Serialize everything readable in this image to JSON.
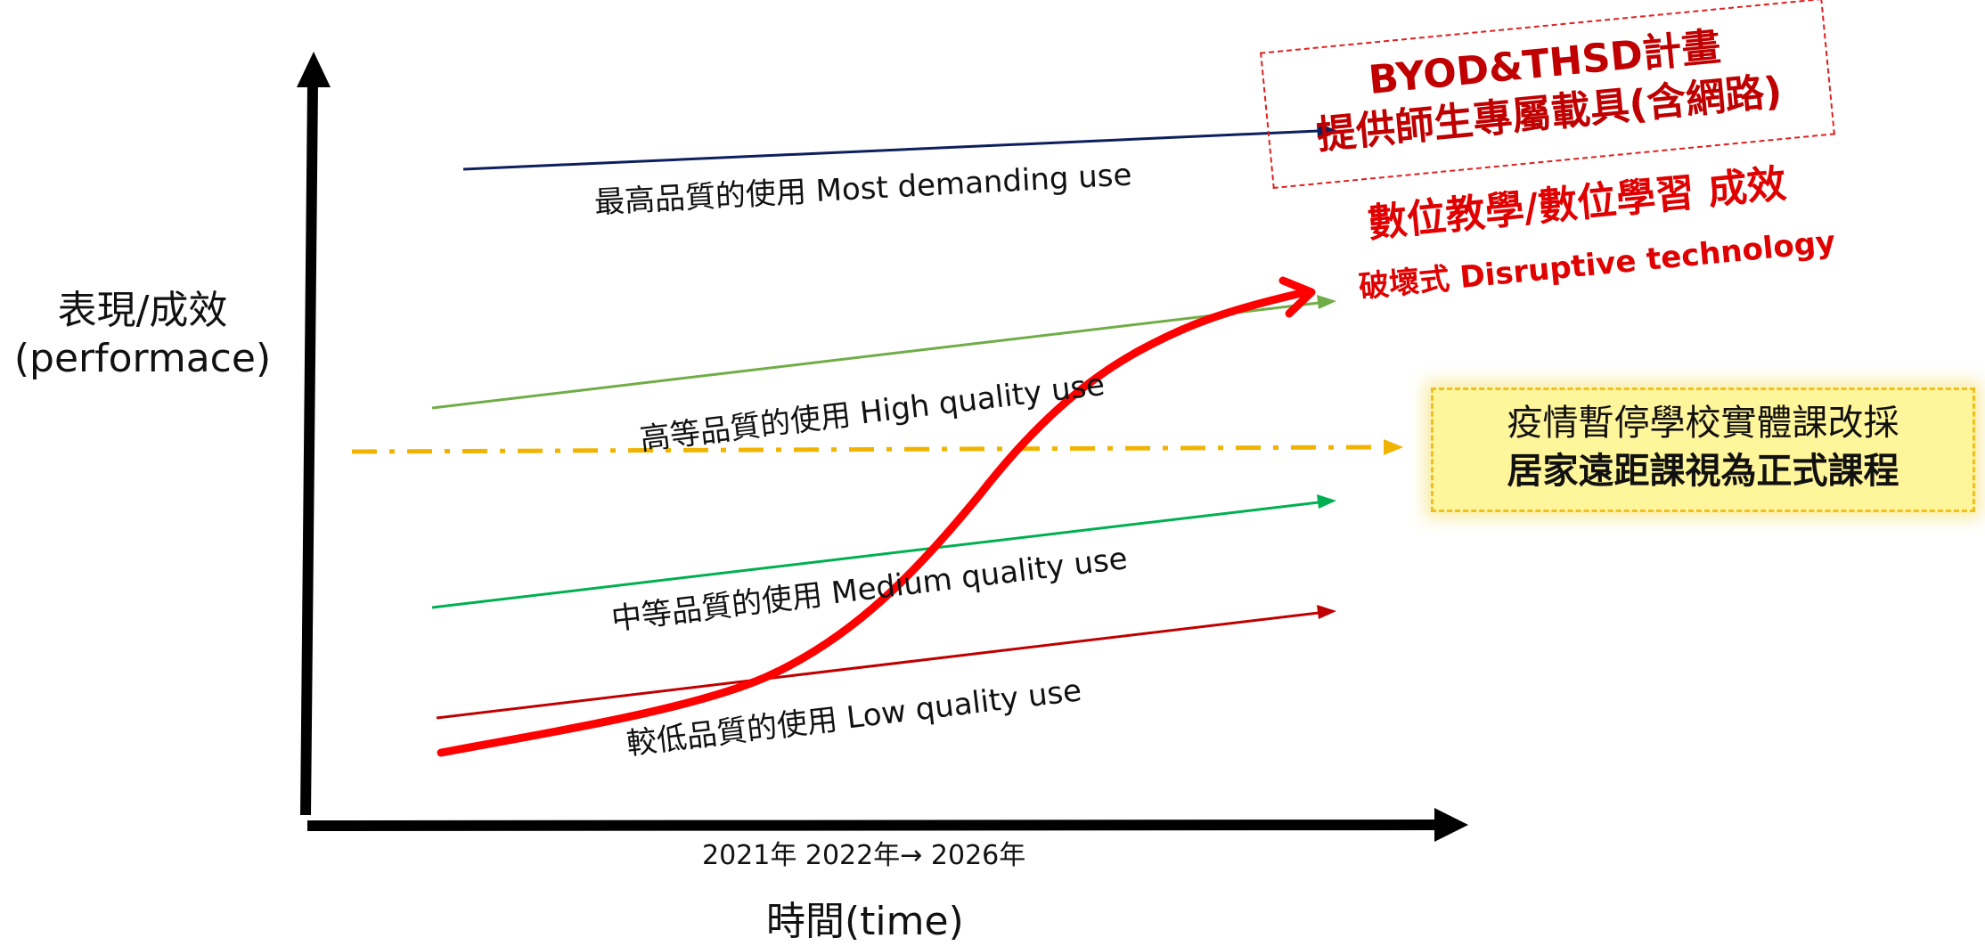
{
  "axes": {
    "y_label_line1": "表現/成效",
    "y_label_line2": "(performace)",
    "x_label": "時間(time)",
    "x_ticks_text": "2021年   2022年→ 2026年"
  },
  "lines": [
    {
      "label": "最高品質的使用 Most demanding use",
      "color": "#0d1f5c"
    },
    {
      "label": "高等品質的使用 High quality use",
      "color": "#70ad47"
    },
    {
      "label": "中等品質的使用 Medium quality use",
      "color": "#00b050"
    },
    {
      "label": "較低品質的使用 Low quality use",
      "color": "#c00000"
    }
  ],
  "curve_color": "#ff0000",
  "pandemic_line_color": "#f0b400",
  "byod": {
    "line1": "BYOD&THSD計畫",
    "line2": "提供師生專屬載具(含網路)"
  },
  "success": {
    "title": "數位教學/數位學習 成效",
    "subtitle": "破壞式 Disruptive technology"
  },
  "pandemic_box": {
    "line1": "疫情暫停學校實體課改採",
    "line2": "居家遠距課視為正式課程"
  }
}
